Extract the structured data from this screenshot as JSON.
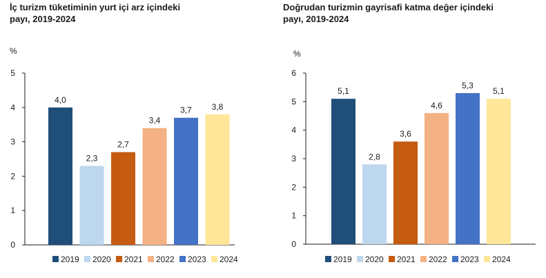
{
  "colors": {
    "2019": "#1f4e79",
    "2020": "#bdd7ee",
    "2021": "#c55a11",
    "2022": "#f4b183",
    "2023": "#4472c4",
    "2024": "#ffe699",
    "axis": "#1a1a1a"
  },
  "chart_data": [
    {
      "type": "bar",
      "title_line1": "İç turizm tüketiminin yurt içi arz içindeki",
      "title_line2": "payı, 2019-2024",
      "ylabel": "%",
      "categories": [
        "2019",
        "2020",
        "2021",
        "2022",
        "2023",
        "2024"
      ],
      "values": [
        4.0,
        2.3,
        2.7,
        3.4,
        3.7,
        3.8
      ],
      "data_labels": [
        "4,0",
        "2,3",
        "2,7",
        "3,4",
        "3,7",
        "3,8"
      ],
      "ylim": [
        0,
        5
      ],
      "yticks": [
        "0",
        "1",
        "2",
        "3",
        "4",
        "5"
      ],
      "grid": false,
      "legend": "bottom"
    },
    {
      "type": "bar",
      "title_line1": "Doğrudan turizmin gayrisafi katma değer içindeki",
      "title_line2": "payı, 2019-2024",
      "ylabel": "%",
      "categories": [
        "2019",
        "2020",
        "2021",
        "2022",
        "2023",
        "2024"
      ],
      "values": [
        5.1,
        2.8,
        3.6,
        4.6,
        5.3,
        5.1
      ],
      "data_labels": [
        "5,1",
        "2,8",
        "3,6",
        "4,6",
        "5,3",
        "5,1"
      ],
      "ylim": [
        0,
        6
      ],
      "yticks": [
        "0",
        "1",
        "2",
        "3",
        "4",
        "5",
        "6"
      ],
      "grid": false,
      "legend": "bottom"
    }
  ]
}
